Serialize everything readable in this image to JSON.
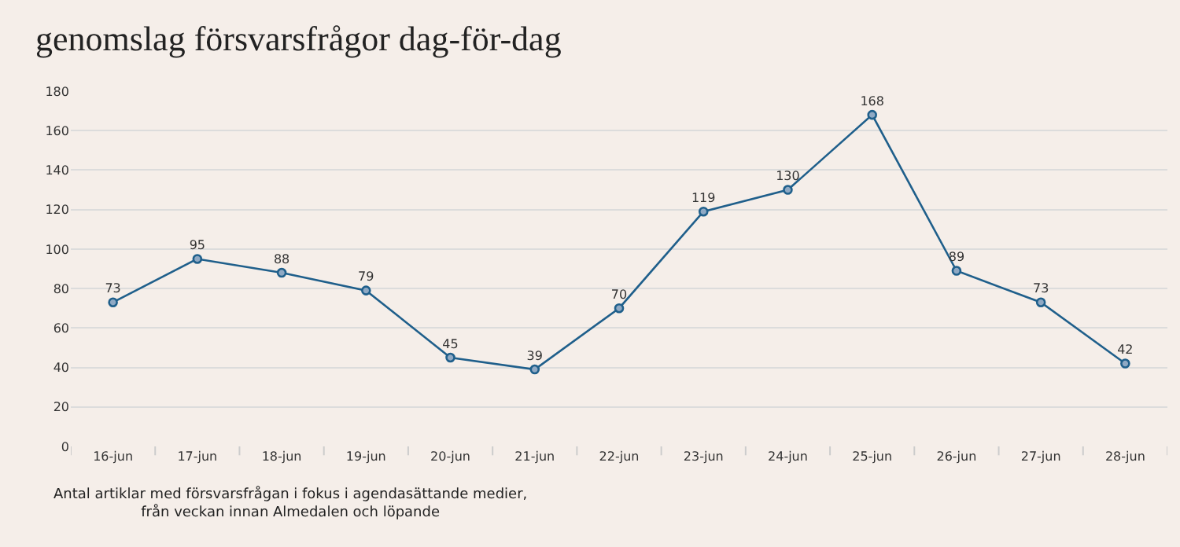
{
  "chart_data": {
    "type": "line",
    "title": "genomslag försvarsfrågor dag-för-dag",
    "categories": [
      "16-jun",
      "17-jun",
      "18-jun",
      "19-jun",
      "20-jun",
      "21-jun",
      "22-jun",
      "23-jun",
      "24-jun",
      "25-jun",
      "26-jun",
      "27-jun",
      "28-jun"
    ],
    "series": [
      {
        "color": "#1f5f8b",
        "values": [
          73,
          95,
          88,
          79,
          45,
          39,
          70,
          119,
          130,
          168,
          89,
          73,
          42
        ]
      }
    ],
    "ylim": [
      0,
      180
    ],
    "yticks": [
      0,
      20,
      40,
      60,
      80,
      100,
      120,
      140,
      160,
      180
    ],
    "grid": "y",
    "marker": "circle",
    "line_style": "solid",
    "data_labels": true,
    "annotations": [
      "Antal artiklar med försvarsfrågan i fokus i agendasättande medier,\nfrån veckan innan Almedalen och löpande"
    ]
  }
}
